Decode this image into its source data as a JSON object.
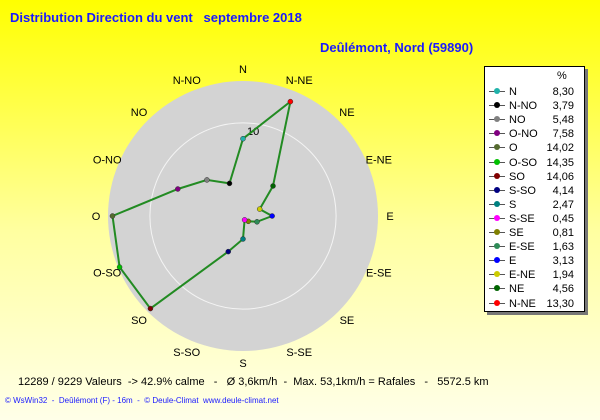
{
  "title": "Distribution Direction du vent   septembre 2018",
  "subtitle": "Deûlémont, Nord (59890)",
  "legend_unit": "%",
  "footer": "12289 / 9229 Valeurs  -> 42.9% calme   -   Ø 3,6km/h  -  Max. 53,1km/h = Rafales   -   5572.5 km",
  "credits": "© WsWin32  -  Deûlémont (F) - 16m  -  © Deule-Climat  www.deule-climat.net",
  "colors": {
    "line": "#228b22",
    "disk": "#d3d3d3",
    "title": "#1a1aff"
  },
  "chart_data": {
    "type": "radar",
    "ring_label": "10",
    "ring_value": 10,
    "max_value": 14.5,
    "directions": [
      "N",
      "N-NE",
      "NE",
      "E-NE",
      "E",
      "E-SE",
      "SE",
      "S-SE",
      "S",
      "S-SO",
      "SO",
      "O-SO",
      "O",
      "O-NO",
      "NO",
      "N-NO"
    ],
    "series": [
      {
        "name": "N",
        "value": "8,30",
        "color": "#20b2aa",
        "num": 8.3
      },
      {
        "name": "N-NO",
        "value": "3,79",
        "color": "#000000",
        "num": 3.79
      },
      {
        "name": "NO",
        "value": "5,48",
        "color": "#808080",
        "num": 5.48
      },
      {
        "name": "O-NO",
        "value": "7,58",
        "color": "#800080",
        "num": 7.58
      },
      {
        "name": "O",
        "value": "14,02",
        "color": "#556b2f",
        "num": 14.02
      },
      {
        "name": "O-SO",
        "value": "14,35",
        "color": "#00c000",
        "num": 14.35
      },
      {
        "name": "SO",
        "value": "14,06",
        "color": "#800000",
        "num": 14.06
      },
      {
        "name": "S-SO",
        "value": "4,14",
        "color": "#000080",
        "num": 4.14
      },
      {
        "name": "S",
        "value": "2,47",
        "color": "#008080",
        "num": 2.47
      },
      {
        "name": "S-SE",
        "value": "0,45",
        "color": "#ff00ff",
        "num": 0.45
      },
      {
        "name": "SE",
        "value": "0,81",
        "color": "#808000",
        "num": 0.81
      },
      {
        "name": "E-SE",
        "value": "1,63",
        "color": "#2e8b57",
        "num": 1.63
      },
      {
        "name": "E",
        "value": "3,13",
        "color": "#0000ff",
        "num": 3.13
      },
      {
        "name": "E-NE",
        "value": "1,94",
        "color": "#cccc00",
        "num": 1.94
      },
      {
        "name": "NE",
        "value": "4,56",
        "color": "#006400",
        "num": 4.56
      },
      {
        "name": "N-NE",
        "value": "13,30",
        "color": "#ff0000",
        "num": 13.3
      }
    ]
  }
}
